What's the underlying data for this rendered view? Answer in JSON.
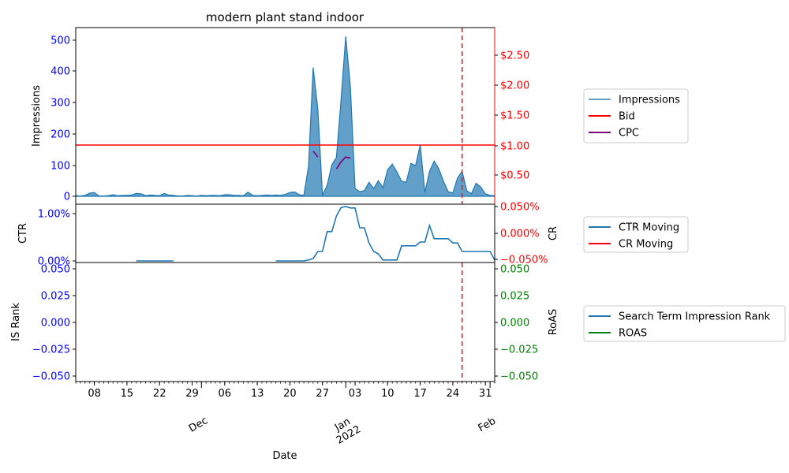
{
  "chart_data": {
    "type": "area",
    "title": "modern plant stand indoor",
    "xlabel": "Date",
    "x_ticks": [
      "08",
      "15",
      "22",
      "29",
      "06",
      "13",
      "20",
      "27",
      "03",
      "10",
      "17",
      "24",
      "31"
    ],
    "x_month_labels": [
      {
        "date": "2021-12-01",
        "text": "Dec"
      },
      {
        "date": "2022-01-01",
        "text": "Jan\n2022"
      },
      {
        "date": "2022-02-01",
        "text": "Feb"
      }
    ],
    "x_range": [
      "2021-11-04",
      "2022-02-02"
    ],
    "colors": {
      "impressions": "#1f77b4",
      "bid": "#ff0000",
      "cpc": "#800080",
      "roas": "#008000",
      "ticks_left": "#0000ff",
      "ticks_right_red": "#ff0000",
      "ticks_right_green": "#008000",
      "vline": "#d62728"
    },
    "vertical_line_date": "2022-01-26",
    "panels": [
      {
        "name": "top",
        "ylabel_left": "Impressions",
        "ylim_left": [
          0,
          540
        ],
        "yticks_left": [
          "0",
          "100",
          "200",
          "300",
          "400",
          "500"
        ],
        "ylim_right": [
          0.17,
          2.95
        ],
        "yticks_right": [
          "$0.50",
          "$1.00",
          "$1.50",
          "$2.00",
          "$2.50"
        ],
        "series": [
          {
            "name": "Impressions",
            "type": "area",
            "axis": "left",
            "points": [
              [
                "2021-11-04",
                2
              ],
              [
                "2021-11-05",
                1
              ],
              [
                "2021-11-06",
                3
              ],
              [
                "2021-11-07",
                10
              ],
              [
                "2021-11-08",
                12
              ],
              [
                "2021-11-09",
                1
              ],
              [
                "2021-11-10",
                1
              ],
              [
                "2021-11-11",
                2
              ],
              [
                "2021-11-12",
                5
              ],
              [
                "2021-11-13",
                2
              ],
              [
                "2021-11-14",
                3
              ],
              [
                "2021-11-15",
                3
              ],
              [
                "2021-11-16",
                4
              ],
              [
                "2021-11-17",
                9
              ],
              [
                "2021-11-18",
                8
              ],
              [
                "2021-11-19",
                2
              ],
              [
                "2021-11-20",
                4
              ],
              [
                "2021-11-21",
                3
              ],
              [
                "2021-11-22",
                2
              ],
              [
                "2021-11-23",
                9
              ],
              [
                "2021-11-24",
                4
              ],
              [
                "2021-11-25",
                3
              ],
              [
                "2021-11-26",
                1
              ],
              [
                "2021-11-27",
                1
              ],
              [
                "2021-11-28",
                3
              ],
              [
                "2021-11-29",
                2
              ],
              [
                "2021-11-30",
                1
              ],
              [
                "2021-12-01",
                3
              ],
              [
                "2021-12-02",
                2
              ],
              [
                "2021-12-03",
                3
              ],
              [
                "2021-12-04",
                3
              ],
              [
                "2021-12-05",
                2
              ],
              [
                "2021-12-06",
                5
              ],
              [
                "2021-12-07",
                5
              ],
              [
                "2021-12-08",
                3
              ],
              [
                "2021-12-09",
                3
              ],
              [
                "2021-12-10",
                2
              ],
              [
                "2021-12-11",
                13
              ],
              [
                "2021-12-12",
                3
              ],
              [
                "2021-12-13",
                2
              ],
              [
                "2021-12-14",
                3
              ],
              [
                "2021-12-15",
                4
              ],
              [
                "2021-12-16",
                3
              ],
              [
                "2021-12-17",
                4
              ],
              [
                "2021-12-18",
                3
              ],
              [
                "2021-12-19",
                6
              ],
              [
                "2021-12-20",
                12
              ],
              [
                "2021-12-21",
                14
              ],
              [
                "2021-12-22",
                5
              ],
              [
                "2021-12-23",
                3
              ],
              [
                "2021-12-24",
                95
              ],
              [
                "2021-12-25",
                412
              ],
              [
                "2021-12-26",
                280
              ],
              [
                "2021-12-27",
                3
              ],
              [
                "2021-12-28",
                35
              ],
              [
                "2021-12-29",
                100
              ],
              [
                "2021-12-30",
                125
              ],
              [
                "2021-12-31",
                310
              ],
              [
                "2022-01-01",
                512
              ],
              [
                "2022-01-02",
                350
              ],
              [
                "2022-01-03",
                25
              ],
              [
                "2022-01-04",
                15
              ],
              [
                "2022-01-05",
                18
              ],
              [
                "2022-01-06",
                45
              ],
              [
                "2022-01-07",
                25
              ],
              [
                "2022-01-08",
                50
              ],
              [
                "2022-01-09",
                28
              ],
              [
                "2022-01-10",
                85
              ],
              [
                "2022-01-11",
                103
              ],
              [
                "2022-01-12",
                78
              ],
              [
                "2022-01-13",
                48
              ],
              [
                "2022-01-14",
                45
              ],
              [
                "2022-01-15",
                105
              ],
              [
                "2022-01-16",
                98
              ],
              [
                "2022-01-17",
                165
              ],
              [
                "2022-01-18",
                12
              ],
              [
                "2022-01-19",
                80
              ],
              [
                "2022-01-20",
                113
              ],
              [
                "2022-01-21",
                88
              ],
              [
                "2022-01-22",
                48
              ],
              [
                "2022-01-23",
                15
              ],
              [
                "2022-01-24",
                10
              ],
              [
                "2022-01-25",
                58
              ],
              [
                "2022-01-26",
                80
              ],
              [
                "2022-01-27",
                18
              ],
              [
                "2022-01-28",
                8
              ],
              [
                "2022-01-29",
                42
              ],
              [
                "2022-01-30",
                30
              ],
              [
                "2022-01-31",
                8
              ],
              [
                "2022-02-01",
                3
              ],
              [
                "2022-02-02",
                2
              ]
            ]
          },
          {
            "name": "Bid",
            "type": "line",
            "axis": "right",
            "points": [
              [
                "2021-11-04",
                1.0
              ],
              [
                "2022-02-02",
                1.0
              ]
            ]
          },
          {
            "name": "CPC",
            "type": "line",
            "axis": "right",
            "segments": [
              [
                [
                  "2021-12-25",
                  0.9
                ],
                [
                  "2021-12-26",
                  0.8
                ]
              ],
              [
                [
                  "2021-12-30",
                  0.6
                ],
                [
                  "2021-12-31",
                  0.72
                ],
                [
                  "2022-01-01",
                  0.8
                ],
                [
                  "2022-01-02",
                  0.78
                ]
              ]
            ]
          }
        ],
        "legend": [
          "Impressions",
          "Bid",
          "CPC"
        ]
      },
      {
        "name": "middle",
        "ylabel_left": "CTR",
        "ylabel_right": "CR",
        "ylim_left": [
          0,
          1.2
        ],
        "yticks_left": [
          "0.00%",
          "1.00%"
        ],
        "ylim_right": [
          -0.055,
          0.055
        ],
        "yticks_right": [
          "−0.050%",
          "0.000%",
          "0.050%"
        ],
        "series": [
          {
            "name": "CTR Moving",
            "type": "line",
            "axis": "left",
            "segments": [
              [
                [
                  "2021-11-17",
                  0
                ],
                [
                  "2021-11-25",
                  0
                ]
              ],
              [
                [
                  "2021-12-17",
                  0
                ],
                [
                  "2021-12-23",
                  0
                ],
                [
                  "2021-12-24",
                  0.02
                ],
                [
                  "2021-12-25",
                  0.05
                ],
                [
                  "2021-12-26",
                  0.2
                ],
                [
                  "2021-12-27",
                  0.2
                ],
                [
                  "2021-12-28",
                  0.62
                ],
                [
                  "2021-12-29",
                  0.62
                ],
                [
                  "2021-12-30",
                  0.95
                ],
                [
                  "2021-12-31",
                  1.13
                ],
                [
                  "2022-01-01",
                  1.15
                ],
                [
                  "2022-01-02",
                  1.12
                ],
                [
                  "2022-01-03",
                  1.12
                ],
                [
                  "2022-01-04",
                  0.7
                ],
                [
                  "2022-01-05",
                  0.7
                ],
                [
                  "2022-01-06",
                  0.38
                ],
                [
                  "2022-01-07",
                  0.2
                ],
                [
                  "2022-01-08",
                  0.15
                ],
                [
                  "2022-01-09",
                  0.02
                ],
                [
                  "2022-01-10",
                  0.02
                ],
                [
                  "2022-01-11",
                  0.02
                ],
                [
                  "2022-01-12",
                  0.02
                ],
                [
                  "2022-01-13",
                  0.32
                ],
                [
                  "2022-01-14",
                  0.32
                ],
                [
                  "2022-01-15",
                  0.32
                ],
                [
                  "2022-01-16",
                  0.32
                ],
                [
                  "2022-01-17",
                  0.4
                ],
                [
                  "2022-01-18",
                  0.4
                ],
                [
                  "2022-01-19",
                  0.75
                ],
                [
                  "2022-01-20",
                  0.47
                ],
                [
                  "2022-01-21",
                  0.47
                ],
                [
                  "2022-01-22",
                  0.47
                ],
                [
                  "2022-01-23",
                  0.47
                ],
                [
                  "2022-01-24",
                  0.38
                ],
                [
                  "2022-01-25",
                  0.38
                ],
                [
                  "2022-01-26",
                  0.2
                ],
                [
                  "2022-01-27",
                  0.2
                ],
                [
                  "2022-01-28",
                  0.2
                ],
                [
                  "2022-01-29",
                  0.2
                ],
                [
                  "2022-01-30",
                  0.2
                ],
                [
                  "2022-01-31",
                  0.2
                ],
                [
                  "2022-02-01",
                  0.2
                ],
                [
                  "2022-02-02",
                  0.02
                ]
              ]
            ]
          },
          {
            "name": "CR Moving",
            "type": "line",
            "axis": "right",
            "segments": []
          }
        ],
        "legend": [
          "CTR Moving",
          "CR Moving"
        ]
      },
      {
        "name": "bottom",
        "ylabel_left": "IS Rank",
        "ylabel_right": "RoAS",
        "ylim_left": [
          -0.055,
          0.055
        ],
        "yticks_left": [
          "−0.050",
          "−0.025",
          "0.000",
          "0.025",
          "0.050"
        ],
        "ylim_right": [
          -0.055,
          0.055
        ],
        "yticks_right": [
          "−0.050",
          "−0.025",
          "0.000",
          "0.025",
          "0.050"
        ],
        "series": [
          {
            "name": "Search Term Impression Rank",
            "type": "line",
            "axis": "left",
            "segments": []
          },
          {
            "name": "ROAS",
            "type": "line",
            "axis": "right",
            "segments": []
          }
        ],
        "legend": [
          "Search Term Impression Rank",
          "ROAS"
        ]
      }
    ]
  }
}
